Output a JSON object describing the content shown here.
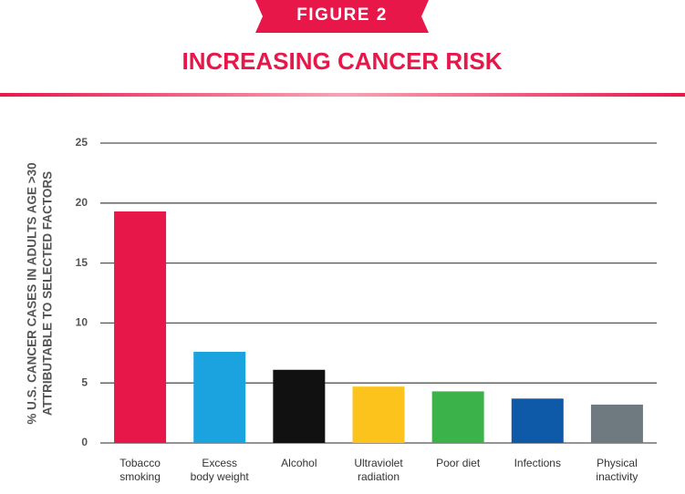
{
  "chart_data": {
    "type": "bar",
    "badge": "FIGURE 2",
    "title": "INCREASING CANCER RISK",
    "y_label": [
      "% U.S. CANCER CASES IN ADULTS AGE >30",
      "ATTRIBUTABLE TO SELECTED FACTORS"
    ],
    "categories": [
      "Tobacco\nsmoking",
      "Excess\nbody weight",
      "Alcohol",
      "Ultraviolet\nradiation",
      "Poor diet",
      "Infections",
      "Physical\ninactivity"
    ],
    "values": [
      19.3,
      7.6,
      6.1,
      4.7,
      4.3,
      3.7,
      3.2
    ],
    "colors": [
      "#e8174a",
      "#1ba3e0",
      "#111111",
      "#fcc31c",
      "#3cb34a",
      "#0e59a8",
      "#6e7980"
    ],
    "ylim": [
      0,
      25
    ],
    "yticks": [
      0,
      5,
      10,
      15,
      20,
      25
    ],
    "grid": true
  }
}
